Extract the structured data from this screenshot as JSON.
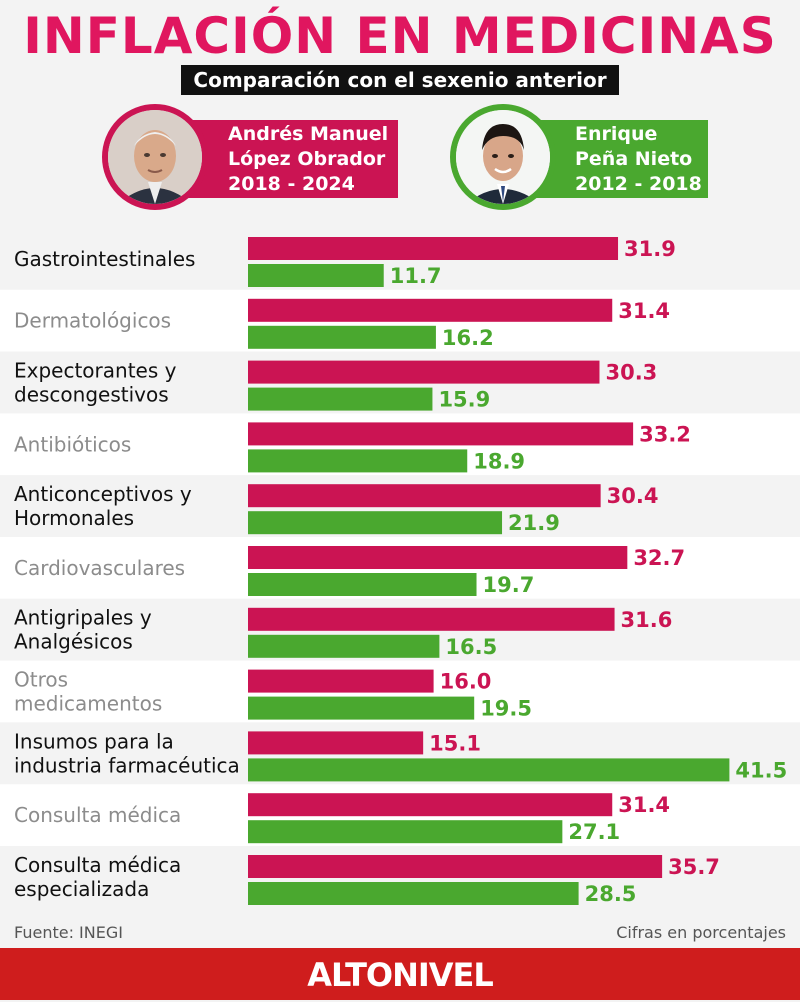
{
  "title": "INFLACIÓN EN MEDICINAS",
  "subtitle": "Comparación con el sexenio anterior",
  "legend": {
    "amlo": {
      "line1": "Andrés Manuel",
      "line2": "López Obrador",
      "line3": "2018 - 2024",
      "color": "#cb1453"
    },
    "epn": {
      "line1": "Enrique",
      "line2": "Peña Nieto",
      "line3": "2012 - 2018",
      "color": "#4aa82f"
    }
  },
  "chart_data": {
    "type": "bar",
    "orientation": "horizontal",
    "categories": [
      "Gastrointestinales",
      "Dermatológicos",
      "Expectorantes y descongestivos",
      "Antibióticos",
      "Anticonceptivos y Hormonales",
      "Cardiovasculares",
      "Antigripales y Analgésicos",
      "Otros medicamentos",
      "Insumos para la industria farmacéutica",
      "Consulta médica",
      "Consulta médica especializada"
    ],
    "category_lines": [
      [
        "Gastrointestinales"
      ],
      [
        "Dermatológicos"
      ],
      [
        "Expectorantes y",
        "descongestivos"
      ],
      [
        "Antibióticos"
      ],
      [
        "Anticonceptivos y",
        "Hormonales"
      ],
      [
        "Cardiovasculares"
      ],
      [
        "Antigripales y",
        "Analgésicos"
      ],
      [
        "Otros",
        "medicamentos"
      ],
      [
        "Insumos para la",
        "industria farmacéutica"
      ],
      [
        "Consulta médica"
      ],
      [
        "Consulta médica",
        "especializada"
      ]
    ],
    "series": [
      {
        "name": "Andrés Manuel López Obrador 2018 - 2024",
        "color": "#cb1453",
        "values": [
          31.9,
          31.4,
          30.3,
          33.2,
          30.4,
          32.7,
          31.6,
          16.0,
          15.1,
          31.4,
          35.7
        ]
      },
      {
        "name": "Enrique Peña Nieto 2012 - 2018",
        "color": "#4aa82f",
        "values": [
          11.7,
          16.2,
          15.9,
          18.9,
          21.9,
          19.7,
          16.5,
          19.5,
          41.5,
          27.1,
          28.5
        ]
      }
    ],
    "xlim": [
      0,
      41.5
    ],
    "value_labels": true,
    "gridlines": false
  },
  "source": "Fuente: INEGI",
  "units_note": "Cifras en porcentajes",
  "brand": "ALTONIVEL"
}
